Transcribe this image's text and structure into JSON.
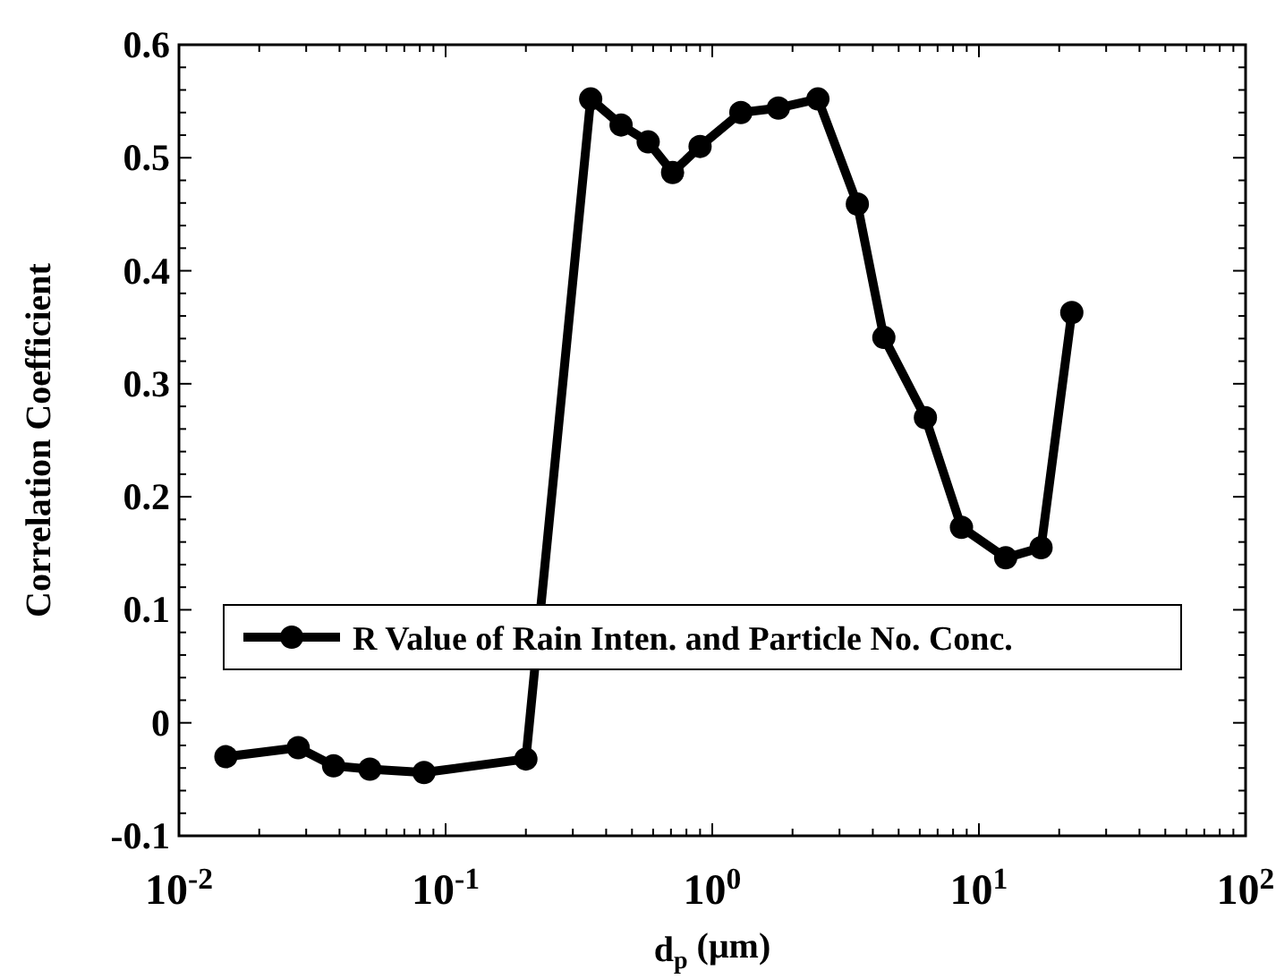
{
  "chart_data": {
    "type": "line",
    "xlabel": "d$_{p}$ (μm)",
    "ylabel": "Correlation Coefficient",
    "log": "x",
    "x": [
      0.015,
      0.028,
      0.038,
      0.052,
      0.083,
      0.2,
      0.35,
      0.455,
      0.575,
      0.71,
      0.9,
      1.28,
      1.77,
      2.49,
      3.5,
      4.4,
      6.3,
      8.6,
      12.6,
      17.1,
      22.3
    ],
    "series": [
      {
        "name": "R Value of Rain Inten. and Particle No. Conc.",
        "color": "#000000",
        "values": [
          -0.03,
          -0.022,
          -0.038,
          -0.041,
          -0.044,
          -0.032,
          0.552,
          0.529,
          0.514,
          0.487,
          0.51,
          0.54,
          0.544,
          0.552,
          0.459,
          0.341,
          0.27,
          0.173,
          0.146,
          0.155,
          0.363
        ]
      }
    ],
    "xlim": [
      0.01,
      100
    ],
    "xticks": [
      {
        "value": 0.01,
        "label": "10$^{-2}$"
      },
      {
        "value": 0.1,
        "label": "10$^{-1}$"
      },
      {
        "value": 1,
        "label": "10$^{0}$"
      },
      {
        "value": 10,
        "label": "10$^{1}$"
      },
      {
        "value": 100,
        "label": "10$^{2}$"
      }
    ],
    "ylim": [
      -0.1,
      0.6
    ],
    "yticks": [
      {
        "value": -0.1,
        "label": "-0.1"
      },
      {
        "value": 0,
        "label": "0"
      },
      {
        "value": 0.1,
        "label": "0.1"
      },
      {
        "value": 0.2,
        "label": "0.2"
      },
      {
        "value": 0.3,
        "label": "0.3"
      },
      {
        "value": 0.4,
        "label": "0.4"
      },
      {
        "value": 0.5,
        "label": "0.5"
      },
      {
        "value": 0.6,
        "label": "0.6"
      }
    ],
    "grid": false,
    "legend": "left",
    "marker": "circle",
    "line_style": "solid"
  }
}
